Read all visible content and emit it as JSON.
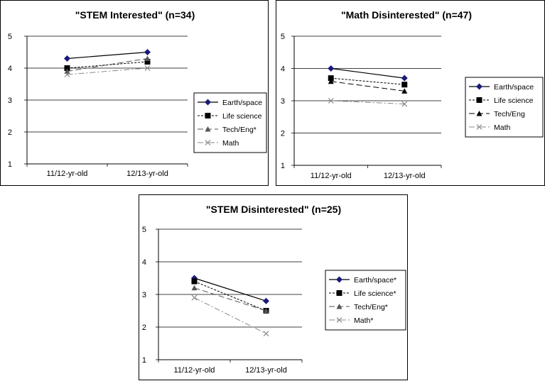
{
  "chart_data": [
    {
      "type": "line",
      "title": "\"STEM Interested\" (n=34)",
      "categories": [
        "11/12-yr-old",
        "12/13-yr-old"
      ],
      "ylim": [
        1,
        5
      ],
      "yticks": [
        1,
        2,
        3,
        4,
        5
      ],
      "series": [
        {
          "name": "Earth/space",
          "values": [
            4.3,
            4.5
          ],
          "color": "#000000",
          "marker": "diamond",
          "markerColor": "#1a1a7a",
          "dash": "",
          "width": 1.2
        },
        {
          "name": "Life science",
          "values": [
            4.0,
            4.2
          ],
          "color": "#000000",
          "marker": "square",
          "markerColor": "#000000",
          "dash": "3,2",
          "width": 1
        },
        {
          "name": "Tech/Eng*",
          "values": [
            3.9,
            4.3
          ],
          "color": "#555555",
          "marker": "triangle",
          "markerColor": "#555555",
          "dash": "8,4",
          "width": 1
        },
        {
          "name": "Math",
          "values": [
            3.8,
            4.0
          ],
          "color": "#888888",
          "marker": "x",
          "markerColor": "#888888",
          "dash": "8,3,2,3",
          "width": 1
        }
      ]
    },
    {
      "type": "line",
      "title": "\"Math Disinterested\" (n=47)",
      "categories": [
        "11/12-yr-old",
        "12/13-yr-old"
      ],
      "ylim": [
        1,
        5
      ],
      "yticks": [
        1,
        2,
        3,
        4,
        5
      ],
      "series": [
        {
          "name": "Earth/space",
          "values": [
            4.0,
            3.7
          ],
          "color": "#000000",
          "marker": "diamond",
          "markerColor": "#1a1a7a",
          "dash": "",
          "width": 1.2
        },
        {
          "name": "Life science",
          "values": [
            3.7,
            3.5
          ],
          "color": "#000000",
          "marker": "square",
          "markerColor": "#000000",
          "dash": "3,2",
          "width": 1
        },
        {
          "name": "Tech/Eng",
          "values": [
            3.6,
            3.3
          ],
          "color": "#000000",
          "marker": "triangle",
          "markerColor": "#000000",
          "dash": "8,4",
          "width": 1
        },
        {
          "name": "Math",
          "values": [
            3.0,
            2.9
          ],
          "color": "#888888",
          "marker": "x",
          "markerColor": "#888888",
          "dash": "8,3,2,3",
          "width": 1
        }
      ]
    },
    {
      "type": "line",
      "title": "\"STEM Disinterested\" (n=25)",
      "categories": [
        "11/12-yr-old",
        "12/13-yr-old"
      ],
      "ylim": [
        1,
        5
      ],
      "yticks": [
        1,
        2,
        3,
        4,
        5
      ],
      "series": [
        {
          "name": "Earth/space*",
          "values": [
            3.5,
            2.8
          ],
          "color": "#000000",
          "marker": "diamond",
          "markerColor": "#1a1a7a",
          "dash": "",
          "width": 1.2
        },
        {
          "name": "Life science*",
          "values": [
            3.4,
            2.5
          ],
          "color": "#000000",
          "marker": "square",
          "markerColor": "#000000",
          "dash": "3,2",
          "width": 1
        },
        {
          "name": "Tech/Eng*",
          "values": [
            3.2,
            2.5
          ],
          "color": "#555555",
          "marker": "triangle",
          "markerColor": "#555555",
          "dash": "8,4",
          "width": 1
        },
        {
          "name": "Math*",
          "values": [
            2.9,
            1.8
          ],
          "color": "#888888",
          "marker": "x",
          "markerColor": "#888888",
          "dash": "8,3,2,3",
          "width": 1
        }
      ]
    }
  ]
}
